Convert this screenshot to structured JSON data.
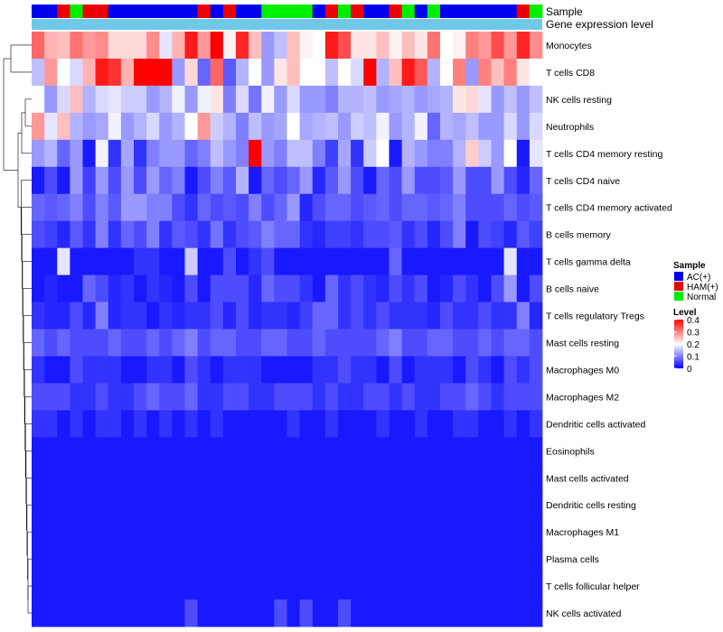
{
  "chart_data": {
    "type": "heatmap",
    "annotation_rows": [
      {
        "label": "Sample",
        "groups": [
          "AC(+)",
          "AC(+)",
          "HAM(+)",
          "Normal",
          "HAM(+)",
          "HAM(+)",
          "AC(+)",
          "AC(+)",
          "AC(+)",
          "AC(+)",
          "AC(+)",
          "AC(+)",
          "AC(+)",
          "HAM(+)",
          "AC(+)",
          "HAM(+)",
          "AC(+)",
          "AC(+)",
          "Normal",
          "Normal",
          "Normal",
          "Normal",
          "AC(+)",
          "HAM(+)",
          "Normal",
          "HAM(+)",
          "AC(+)",
          "AC(+)",
          "HAM(+)",
          "Normal",
          "AC(+)",
          "Normal",
          "AC(+)",
          "AC(+)",
          "AC(+)",
          "AC(+)",
          "AC(+)",
          "AC(+)",
          "HAM(+)",
          "Normal"
        ]
      },
      {
        "label": "Gene expression level"
      }
    ],
    "rows": [
      "Monocytes",
      "T cells CD8",
      "NK cells resting",
      "Neutrophils",
      "T cells CD4 memory resting",
      "T cells CD4 naive",
      "T cells CD4 memory activated",
      "B cells memory",
      "T cells gamma delta",
      "B cells naive",
      "T cells regulatory  Tregs",
      "Mast cells resting",
      "Macrophages M0",
      "Macrophages M2",
      "Dendritic cells activated",
      "Eosinophils",
      "Mast cells activated",
      "Dendritic cells resting",
      "Macrophages M1",
      "Plasma cells",
      "T cells follicular helper",
      "NK cells activated"
    ],
    "values": [
      [
        0.32,
        0.26,
        0.25,
        0.31,
        0.28,
        0.29,
        0.23,
        0.23,
        0.23,
        0.29,
        0.18,
        0.26,
        0.38,
        0.28,
        0.4,
        0.21,
        0.37,
        0.25,
        0.12,
        0.15,
        0.25,
        0.21,
        0.2,
        0.38,
        0.34,
        0.22,
        0.22,
        0.25,
        0.21,
        0.25,
        0.22,
        0.31,
        0.2,
        0.21,
        0.3,
        0.28,
        0.34,
        0.28,
        0.37,
        0.29
      ],
      [
        0.15,
        0.28,
        0.2,
        0.17,
        0.26,
        0.38,
        0.36,
        0.26,
        0.42,
        0.4,
        0.4,
        0.12,
        0.23,
        0.08,
        0.32,
        0.07,
        0.14,
        0.2,
        0.12,
        0.22,
        0.25,
        0.2,
        0.2,
        0.15,
        0.2,
        0.17,
        0.4,
        0.14,
        0.25,
        0.38,
        0.33,
        0.14,
        0.2,
        0.3,
        0.12,
        0.3,
        0.25,
        0.3,
        0.22,
        0.2
      ],
      [
        0.2,
        0.12,
        0.17,
        0.25,
        0.14,
        0.17,
        0.18,
        0.16,
        0.16,
        0.12,
        0.14,
        0.19,
        0.12,
        0.19,
        0.22,
        0.1,
        0.17,
        0.09,
        0.19,
        0.12,
        0.17,
        0.12,
        0.12,
        0.1,
        0.14,
        0.14,
        0.15,
        0.12,
        0.13,
        0.14,
        0.12,
        0.13,
        0.14,
        0.22,
        0.23,
        0.18,
        0.12,
        0.15,
        0.12,
        0.15
      ],
      [
        0.28,
        0.18,
        0.25,
        0.14,
        0.12,
        0.13,
        0.19,
        0.12,
        0.14,
        0.17,
        0.12,
        0.14,
        0.2,
        0.28,
        0.16,
        0.14,
        0.1,
        0.15,
        0.12,
        0.13,
        0.2,
        0.13,
        0.14,
        0.15,
        0.12,
        0.16,
        0.15,
        0.19,
        0.12,
        0.14,
        0.19,
        0.08,
        0.14,
        0.13,
        0.15,
        0.12,
        0.12,
        0.17,
        0.12,
        0.17
      ],
      [
        0.12,
        0.14,
        0.08,
        0.12,
        0.02,
        0.19,
        0.04,
        0.13,
        0.04,
        0.1,
        0.12,
        0.12,
        0.08,
        0.1,
        0.15,
        0.12,
        0.1,
        0.42,
        0.12,
        0.1,
        0.15,
        0.15,
        0.1,
        0.05,
        0.13,
        0.04,
        0.16,
        0.2,
        0.02,
        0.14,
        0.12,
        0.1,
        0.1,
        0.14,
        0.24,
        0.16,
        0.12,
        0.2,
        0.02,
        0.18
      ],
      [
        0.02,
        0.06,
        0.02,
        0.12,
        0.05,
        0.12,
        0.06,
        0.12,
        0.06,
        0.12,
        0.08,
        0.1,
        0.02,
        0.06,
        0.1,
        0.07,
        0.14,
        0.02,
        0.08,
        0.06,
        0.08,
        0.12,
        0.03,
        0.07,
        0.12,
        0.06,
        0.02,
        0.08,
        0.06,
        0.12,
        0.06,
        0.06,
        0.07,
        0.12,
        0.06,
        0.06,
        0.12,
        0.06,
        0.03,
        0.08
      ],
      [
        0.08,
        0.07,
        0.08,
        0.1,
        0.06,
        0.1,
        0.07,
        0.12,
        0.12,
        0.1,
        0.1,
        0.06,
        0.04,
        0.08,
        0.06,
        0.07,
        0.06,
        0.1,
        0.06,
        0.08,
        0.12,
        0.03,
        0.06,
        0.08,
        0.08,
        0.06,
        0.07,
        0.08,
        0.06,
        0.08,
        0.08,
        0.07,
        0.08,
        0.1,
        0.06,
        0.06,
        0.06,
        0.08,
        0.06,
        0.07
      ],
      [
        0.06,
        0.05,
        0.03,
        0.07,
        0.04,
        0.1,
        0.04,
        0.08,
        0.06,
        0.1,
        0.04,
        0.07,
        0.06,
        0.04,
        0.09,
        0.04,
        0.06,
        0.07,
        0.1,
        0.08,
        0.08,
        0.04,
        0.03,
        0.05,
        0.05,
        0.04,
        0.06,
        0.06,
        0.07,
        0.04,
        0.06,
        0.03,
        0.06,
        0.1,
        0.02,
        0.06,
        0.05,
        0.03,
        0.07,
        0.05
      ],
      [
        0.02,
        0.02,
        0.18,
        0.02,
        0.02,
        0.02,
        0.02,
        0.02,
        0.04,
        0.04,
        0.02,
        0.02,
        0.16,
        0.02,
        0.02,
        0.06,
        0.02,
        0.04,
        0.06,
        0.02,
        0.02,
        0.02,
        0.02,
        0.02,
        0.02,
        0.02,
        0.02,
        0.02,
        0.08,
        0.02,
        0.02,
        0.02,
        0.02,
        0.02,
        0.02,
        0.02,
        0.02,
        0.18,
        0.02,
        0.02
      ],
      [
        0.02,
        0.03,
        0.02,
        0.02,
        0.08,
        0.06,
        0.03,
        0.04,
        0.02,
        0.04,
        0.03,
        0.02,
        0.06,
        0.02,
        0.06,
        0.06,
        0.06,
        0.03,
        0.08,
        0.06,
        0.06,
        0.04,
        0.02,
        0.08,
        0.04,
        0.06,
        0.04,
        0.03,
        0.06,
        0.04,
        0.06,
        0.02,
        0.03,
        0.06,
        0.04,
        0.02,
        0.06,
        0.12,
        0.02,
        0.06
      ],
      [
        0.04,
        0.03,
        0.03,
        0.06,
        0.03,
        0.1,
        0.03,
        0.04,
        0.04,
        0.02,
        0.04,
        0.03,
        0.04,
        0.04,
        0.06,
        0.03,
        0.06,
        0.03,
        0.04,
        0.04,
        0.03,
        0.05,
        0.08,
        0.08,
        0.04,
        0.06,
        0.04,
        0.06,
        0.04,
        0.04,
        0.04,
        0.03,
        0.06,
        0.04,
        0.04,
        0.06,
        0.04,
        0.04,
        0.1,
        0.03
      ],
      [
        0.08,
        0.06,
        0.08,
        0.06,
        0.06,
        0.06,
        0.08,
        0.06,
        0.06,
        0.08,
        0.06,
        0.08,
        0.1,
        0.06,
        0.08,
        0.08,
        0.06,
        0.06,
        0.08,
        0.08,
        0.06,
        0.06,
        0.08,
        0.06,
        0.06,
        0.06,
        0.06,
        0.08,
        0.1,
        0.06,
        0.06,
        0.08,
        0.08,
        0.06,
        0.06,
        0.08,
        0.06,
        0.08,
        0.08,
        0.06
      ],
      [
        0.04,
        0.02,
        0.02,
        0.06,
        0.04,
        0.04,
        0.04,
        0.02,
        0.02,
        0.04,
        0.04,
        0.02,
        0.06,
        0.04,
        0.02,
        0.04,
        0.04,
        0.04,
        0.02,
        0.02,
        0.02,
        0.02,
        0.04,
        0.04,
        0.06,
        0.04,
        0.04,
        0.02,
        0.06,
        0.02,
        0.04,
        0.04,
        0.04,
        0.02,
        0.06,
        0.04,
        0.02,
        0.06,
        0.04,
        0.06
      ],
      [
        0.06,
        0.06,
        0.06,
        0.04,
        0.04,
        0.06,
        0.04,
        0.04,
        0.06,
        0.08,
        0.06,
        0.06,
        0.08,
        0.04,
        0.04,
        0.06,
        0.06,
        0.04,
        0.04,
        0.06,
        0.06,
        0.06,
        0.04,
        0.06,
        0.04,
        0.04,
        0.06,
        0.06,
        0.04,
        0.06,
        0.04,
        0.04,
        0.06,
        0.06,
        0.08,
        0.06,
        0.04,
        0.06,
        0.06,
        0.06
      ],
      [
        0.04,
        0.04,
        0.02,
        0.04,
        0.02,
        0.04,
        0.04,
        0.02,
        0.04,
        0.02,
        0.04,
        0.02,
        0.04,
        0.02,
        0.04,
        0.02,
        0.02,
        0.02,
        0.02,
        0.02,
        0.04,
        0.02,
        0.02,
        0.04,
        0.02,
        0.02,
        0.02,
        0.04,
        0.02,
        0.02,
        0.04,
        0.02,
        0.02,
        0.04,
        0.04,
        0.02,
        0.02,
        0.04,
        0.02,
        0.04
      ],
      [
        0.02,
        0.02,
        0.02,
        0.02,
        0.02,
        0.02,
        0.02,
        0.02,
        0.02,
        0.02,
        0.02,
        0.02,
        0.02,
        0.02,
        0.02,
        0.02,
        0.02,
        0.02,
        0.02,
        0.02,
        0.02,
        0.02,
        0.02,
        0.02,
        0.02,
        0.02,
        0.02,
        0.02,
        0.02,
        0.02,
        0.02,
        0.02,
        0.02,
        0.02,
        0.02,
        0.02,
        0.02,
        0.02,
        0.02,
        0.02
      ],
      [
        0.02,
        0.02,
        0.02,
        0.02,
        0.02,
        0.02,
        0.02,
        0.02,
        0.02,
        0.02,
        0.02,
        0.02,
        0.02,
        0.02,
        0.02,
        0.02,
        0.02,
        0.02,
        0.02,
        0.02,
        0.02,
        0.02,
        0.02,
        0.02,
        0.02,
        0.02,
        0.02,
        0.02,
        0.02,
        0.02,
        0.02,
        0.02,
        0.02,
        0.02,
        0.02,
        0.02,
        0.02,
        0.02,
        0.02,
        0.02
      ],
      [
        0.02,
        0.02,
        0.02,
        0.02,
        0.02,
        0.02,
        0.02,
        0.02,
        0.02,
        0.02,
        0.02,
        0.02,
        0.02,
        0.02,
        0.02,
        0.02,
        0.02,
        0.02,
        0.02,
        0.02,
        0.02,
        0.02,
        0.02,
        0.02,
        0.02,
        0.02,
        0.02,
        0.02,
        0.02,
        0.02,
        0.02,
        0.02,
        0.02,
        0.02,
        0.02,
        0.02,
        0.02,
        0.02,
        0.02,
        0.02
      ],
      [
        0.02,
        0.02,
        0.02,
        0.02,
        0.02,
        0.02,
        0.02,
        0.02,
        0.02,
        0.02,
        0.02,
        0.02,
        0.02,
        0.02,
        0.02,
        0.02,
        0.02,
        0.02,
        0.02,
        0.02,
        0.02,
        0.02,
        0.02,
        0.02,
        0.02,
        0.02,
        0.02,
        0.02,
        0.02,
        0.02,
        0.02,
        0.02,
        0.02,
        0.02,
        0.02,
        0.02,
        0.02,
        0.02,
        0.02,
        0.02
      ],
      [
        0.02,
        0.02,
        0.02,
        0.02,
        0.02,
        0.02,
        0.02,
        0.02,
        0.02,
        0.02,
        0.02,
        0.02,
        0.02,
        0.02,
        0.02,
        0.02,
        0.02,
        0.02,
        0.02,
        0.02,
        0.02,
        0.02,
        0.02,
        0.02,
        0.02,
        0.02,
        0.02,
        0.02,
        0.02,
        0.02,
        0.02,
        0.02,
        0.02,
        0.02,
        0.02,
        0.02,
        0.02,
        0.02,
        0.02,
        0.02
      ],
      [
        0.02,
        0.02,
        0.02,
        0.02,
        0.02,
        0.02,
        0.02,
        0.02,
        0.02,
        0.02,
        0.02,
        0.02,
        0.02,
        0.02,
        0.02,
        0.02,
        0.02,
        0.02,
        0.02,
        0.02,
        0.02,
        0.02,
        0.02,
        0.02,
        0.02,
        0.02,
        0.02,
        0.02,
        0.02,
        0.02,
        0.02,
        0.02,
        0.02,
        0.02,
        0.02,
        0.02,
        0.02,
        0.02,
        0.02,
        0.02
      ],
      [
        0.02,
        0.02,
        0.02,
        0.02,
        0.02,
        0.02,
        0.02,
        0.02,
        0.02,
        0.02,
        0.02,
        0.02,
        0.06,
        0.02,
        0.02,
        0.02,
        0.02,
        0.02,
        0.02,
        0.06,
        0.02,
        0.06,
        0.02,
        0.02,
        0.06,
        0.02,
        0.02,
        0.02,
        0.02,
        0.02,
        0.02,
        0.02,
        0.02,
        0.02,
        0.02,
        0.02,
        0.02,
        0.02,
        0.02,
        0.02
      ]
    ],
    "legend": {
      "sample_title": "Sample",
      "sample_entries": [
        {
          "label": "AC(+)",
          "color": "#0000ee"
        },
        {
          "label": "HAM(+)",
          "color": "#ee0000"
        },
        {
          "label": "Normal",
          "color": "#00ee00"
        }
      ],
      "level_title": "Level",
      "level_ticks": [
        "0.4",
        "0.3",
        "0.2",
        "0.1",
        "0"
      ],
      "level_range": [
        0,
        0.4
      ],
      "color_low": "#0000ff",
      "color_mid": "#ffffff",
      "color_high": "#ff0000"
    },
    "gene_expression_color": "#70c8e8"
  }
}
